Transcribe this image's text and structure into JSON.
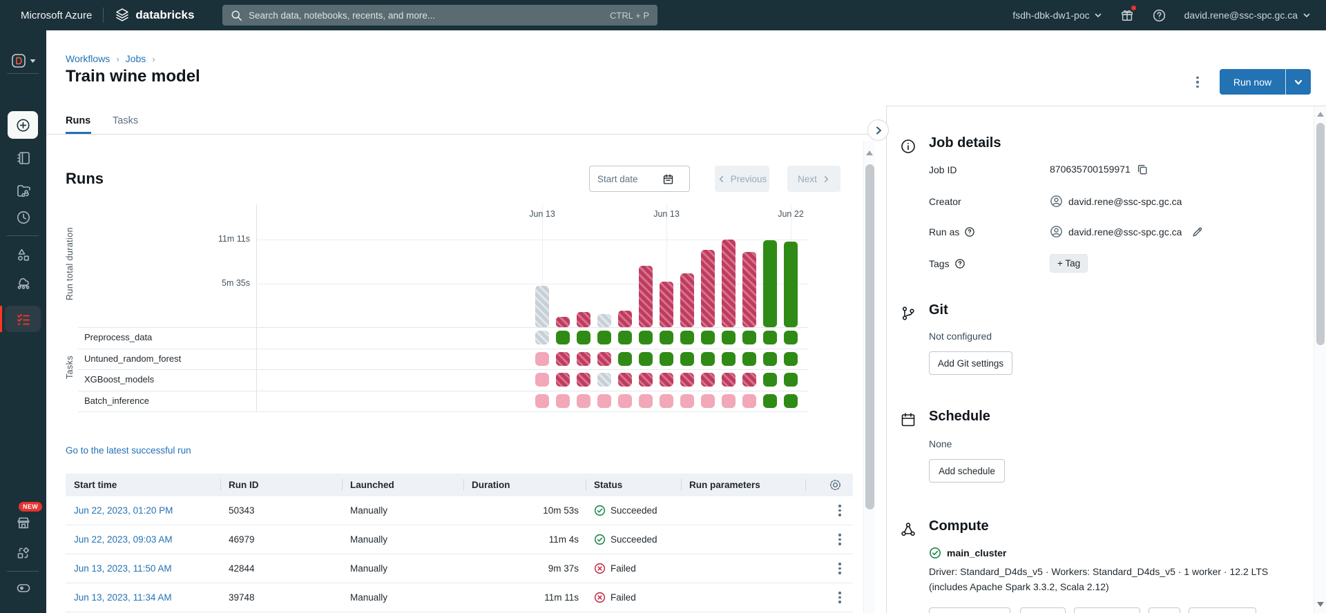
{
  "colors": {
    "accent_blue": "#2272B4",
    "topbar_bg": "#1B3139",
    "success_green": "#2F8B15",
    "failed_red": "#C13A5E",
    "skipped_pink": "#F2A8B8",
    "cancelled_gray": "#C7CFD7",
    "sidebar_active_red": "#FF3621"
  },
  "icons": [
    "search-icon",
    "gift-icon",
    "help-icon",
    "chevron-down-icon",
    "databricks-logo-icon",
    "d-logo-icon",
    "plus-circle-icon",
    "notebook-icon",
    "repos-icon",
    "recents-icon",
    "catalog-icon",
    "workflows-icon",
    "job-runs-icon",
    "marketplace-icon",
    "partner-connect-icon",
    "feature-toggle-icon",
    "side-panel-icon",
    "calendar-icon",
    "chevron-left-icon",
    "chevron-right-icon",
    "gear-icon",
    "kebab-icon",
    "check-circle-icon",
    "x-circle-icon",
    "info-icon",
    "git-branch-icon",
    "compute-icon",
    "copy-icon",
    "user-icon",
    "edit-pencil-icon",
    "collapse-panel-icon"
  ],
  "topbar": {
    "brand": "Microsoft Azure",
    "product": "databricks",
    "search_placeholder": "Search data, notebooks, recents, and more...",
    "search_shortcut": "CTRL + P",
    "workspace": "fsdh-dbk-dw1-poc",
    "user_email": "david.rene@ssc-spc.gc.ca"
  },
  "sidebar": {
    "new_badge": "NEW"
  },
  "breadcrumb": {
    "items": [
      "Workflows",
      "Jobs"
    ]
  },
  "page": {
    "title": "Train wine model"
  },
  "actions": {
    "run_now": "Run now"
  },
  "tabs": {
    "runs": "Runs",
    "tasks": "Tasks"
  },
  "runs_section": {
    "heading": "Runs",
    "start_date_placeholder": "Start date",
    "previous_label": "Previous",
    "next_label": "Next",
    "latest_run_link": "Go to the latest successful run"
  },
  "chart_data": {
    "type": "bar",
    "title": "Run total duration per run with task status matrix",
    "ylabel": "Run total duration",
    "row_axis_label": "Tasks",
    "ylim_seconds": [
      0,
      948
    ],
    "yticks": [
      {
        "label": "11m 11s",
        "seconds": 671
      },
      {
        "label": "5m 35s",
        "seconds": 335
      }
    ],
    "x_date_ticks": [
      {
        "label": "Jun 13",
        "col": 0
      },
      {
        "label": "Jun 13",
        "col": 6
      },
      {
        "label": "Jun 22",
        "col": 12
      }
    ],
    "tasks": [
      "Preprocess_data",
      "Untuned_random_forest",
      "XGBoost_models",
      "Batch_inference"
    ],
    "status_legend": {
      "success": "solid green",
      "failed": "hatched crimson",
      "cancelled": "hatched gray",
      "skipped": "solid pink"
    },
    "runs": [
      {
        "duration_seconds": 315,
        "status": "cancelled",
        "task_statuses": [
          "cancelled",
          "skipped",
          "skipped",
          "skipped"
        ]
      },
      {
        "duration_seconds": 81,
        "status": "failed",
        "task_statuses": [
          "success",
          "failed",
          "failed",
          "skipped"
        ]
      },
      {
        "duration_seconds": 117,
        "status": "failed",
        "task_statuses": [
          "success",
          "failed",
          "failed",
          "skipped"
        ]
      },
      {
        "duration_seconds": 99,
        "status": "cancelled",
        "task_statuses": [
          "success",
          "failed",
          "cancelled",
          "skipped"
        ]
      },
      {
        "duration_seconds": 126,
        "status": "failed",
        "task_statuses": [
          "success",
          "success",
          "failed",
          "skipped"
        ]
      },
      {
        "duration_seconds": 468,
        "status": "failed",
        "task_statuses": [
          "success",
          "success",
          "failed",
          "skipped"
        ]
      },
      {
        "duration_seconds": 347,
        "status": "failed",
        "task_statuses": [
          "success",
          "success",
          "failed",
          "skipped"
        ]
      },
      {
        "duration_seconds": 414,
        "status": "failed",
        "task_statuses": [
          "success",
          "success",
          "failed",
          "skipped"
        ]
      },
      {
        "duration_seconds": 594,
        "status": "failed",
        "task_statuses": [
          "success",
          "success",
          "failed",
          "skipped"
        ]
      },
      {
        "duration_seconds": 671,
        "status": "failed",
        "task_statuses": [
          "success",
          "success",
          "failed",
          "skipped"
        ]
      },
      {
        "duration_seconds": 577,
        "status": "failed",
        "task_statuses": [
          "success",
          "success",
          "failed",
          "skipped"
        ]
      },
      {
        "duration_seconds": 664,
        "status": "success",
        "task_statuses": [
          "success",
          "success",
          "success",
          "success"
        ]
      },
      {
        "duration_seconds": 653,
        "status": "success",
        "task_statuses": [
          "success",
          "success",
          "success",
          "success"
        ]
      }
    ]
  },
  "table": {
    "columns": [
      "Start time",
      "Run ID",
      "Launched",
      "Duration",
      "Status",
      "Run parameters"
    ],
    "rows": [
      {
        "start_time": "Jun 22, 2023, 01:20 PM",
        "run_id": "50343",
        "launched": "Manually",
        "duration": "10m 53s",
        "status": "Succeeded",
        "run_parameters": ""
      },
      {
        "start_time": "Jun 22, 2023, 09:03 AM",
        "run_id": "46979",
        "launched": "Manually",
        "duration": "11m 4s",
        "status": "Succeeded",
        "run_parameters": ""
      },
      {
        "start_time": "Jun 13, 2023, 11:50 AM",
        "run_id": "42844",
        "launched": "Manually",
        "duration": "9m 37s",
        "status": "Failed",
        "run_parameters": ""
      },
      {
        "start_time": "Jun 13, 2023, 11:34 AM",
        "run_id": "39748",
        "launched": "Manually",
        "duration": "11m 11s",
        "status": "Failed",
        "run_parameters": ""
      }
    ]
  },
  "details_panel": {
    "job_details": {
      "heading": "Job details",
      "job_id_label": "Job ID",
      "job_id": "870635700159971",
      "creator_label": "Creator",
      "creator": "david.rene@ssc-spc.gc.ca",
      "run_as_label": "Run as",
      "run_as": "david.rene@ssc-spc.gc.ca",
      "tags_label": "Tags",
      "add_tag_label": "+ Tag"
    },
    "git": {
      "heading": "Git",
      "status": "Not configured",
      "button_label": "Add Git settings"
    },
    "schedule": {
      "heading": "Schedule",
      "status": "None",
      "button_label": "Add schedule"
    },
    "compute": {
      "heading": "Compute",
      "cluster_name": "main_cluster",
      "description": "Driver: Standard_D4ds_v5 · Workers: Standard_D4ds_v5 · 1 worker · 12.2 LTS (includes Apache Spark 3.3.2, Scala 2.12)"
    }
  }
}
